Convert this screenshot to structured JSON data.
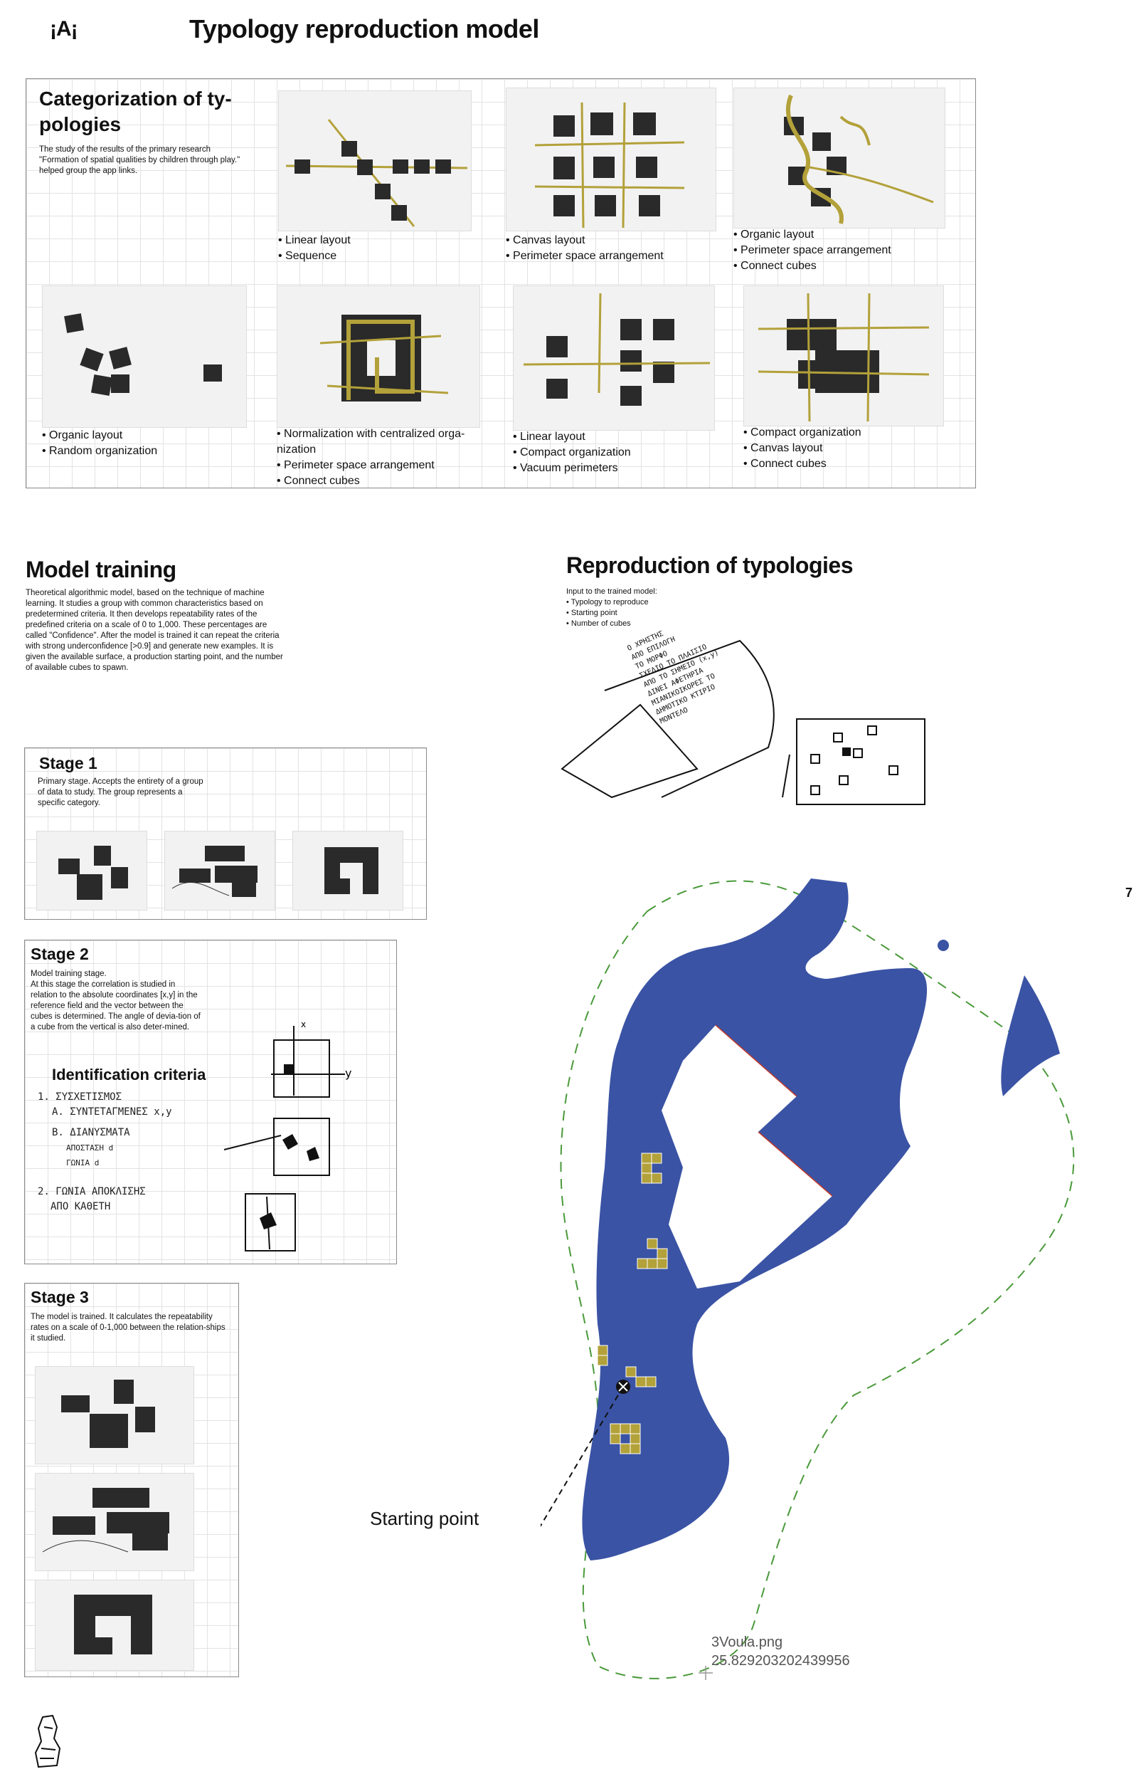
{
  "logo": {
    "text": "¡A¡"
  },
  "page_title": "Typology reproduction model",
  "categorization": {
    "title": "Categorization of ty-\npologies",
    "description": "The study of the results of the primary research \"Formation of spatial qualities by children through play.\" helped group the app links.",
    "items": [
      {
        "lines": [
          "Linear layout",
          "Sequence"
        ]
      },
      {
        "lines": [
          "Canvas layout",
          "Perimeter space arrangement"
        ]
      },
      {
        "lines": [
          "Organic layout",
          "Perimeter space arrangement",
          "Connect cubes"
        ]
      },
      {
        "lines": [
          "Organic layout",
          "Random organization"
        ]
      },
      {
        "lines": [
          "Normalization with centralized orga-\nnization",
          "Perimeter space arrangement",
          "Connect cubes"
        ]
      },
      {
        "lines": [
          "Linear layout",
          "Compact organization",
          "Vacuum perimeters"
        ]
      },
      {
        "lines": [
          "Compact organization",
          "Canvas layout",
          "Connect cubes"
        ]
      }
    ]
  },
  "model_training": {
    "title": "Model training",
    "description": "Theoretical algorithmic model, based on the technique of machine learning. It studies a group with common characteristics based on predetermined criteria. It then develops repeatability rates of the predefined criteria on a scale of 0 to 1,000. These percentages are called \"Confidence\". After the model is trained it can repeat the criteria with strong underconfidence [>0.9] and generate new examples. It is given the available surface, a production starting point, and the number of available cubes to spawn."
  },
  "stages": [
    {
      "title": "Stage 1",
      "text": "Primary stage. Accepts the entirety of a group of data to study. The group represents a specific category."
    },
    {
      "title": "Stage 2",
      "text": "Model training stage.\nAt this stage the correlation is studied in relation to the absolute coordinates [x,y] in the reference field and the vector between the cubes is determined. The angle of devia-tion of a cube from the vertical is also deter-mined."
    },
    {
      "title": "Stage 3",
      "text": "The model is trained. It calculates the repeatability rates on a scale of 0-1,000 between the relation-ships it studied."
    }
  ],
  "identification": {
    "title": "Identification criteria",
    "handwriting": [
      "1. ΣΥΣΧΕΤΙΣΜΟΣ",
      "Α. ΣΥΝΤΕΤΑΓΜΕΝΕΣ x,y",
      "Β. ΔΙΑΝΥΣΜΑΤΑ",
      "ΑΠΟΣΤΑΣΗ d",
      "ΓΩΝΙΑ d",
      "2. ΓΩΝΙΑ ΑΠΟΚΛΙΣΗΣ",
      "ΑΠΟ ΚΑΘΕΤΗ"
    ],
    "axis_x": "x",
    "axis_y": "y"
  },
  "reproduction": {
    "title": "Reproduction of typologies",
    "intro": "Input to the trained model:",
    "inputs": [
      "Typology to reproduce",
      "Starting point",
      "Number of cubes"
    ],
    "handwriting": [
      "Ο ΧΡΗΣΤΗΣ",
      "ΑΠΟ ΕΠΙΛΟΓΗ",
      "ΤΟ ΜΟΡΦΟ",
      "ΣΧΕΔΙΟ ΤΟ ΠΛΑΙΣΙΟ",
      "ΑΠΟ ΤΟ ΣΗΜΕΙΟ (x,y)",
      "ΔΙΝΕΙ ΑΦΕΤΗΡΙΑ",
      "ΜΙΑΝΙΚΟΙΚΟΡΕΣ ΤΟ",
      "ΔΗΜΟΤΙΚΟ ΚΤΙΡΙΟ",
      "ΜΟΝΤΕΛΟ"
    ]
  },
  "page_number": "7",
  "starting_point_label": "Starting point",
  "map": {
    "file": "3Voula.png",
    "value": "25.829203202439956",
    "colors": {
      "water": "#3a53a4",
      "cube": "#b3a13a",
      "boundary": "#4a9a3a",
      "edge": "#c0392b"
    }
  }
}
